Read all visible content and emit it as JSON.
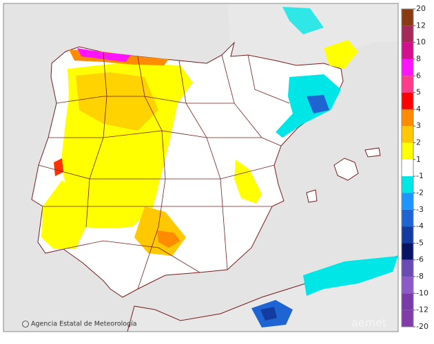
{
  "credit": "Agencia Estatal de Meteorología",
  "watermark": "aemet",
  "legend": {
    "ticks": [
      20,
      12,
      10,
      8,
      6,
      5,
      4,
      3,
      2,
      1,
      -1,
      -2,
      -3,
      -4,
      -5,
      -6,
      -8,
      -10,
      -12,
      -20
    ],
    "colors": [
      "#8a3b12",
      "#a52a5a",
      "#d0108c",
      "#ff14ff",
      "#ff3c8c",
      "#ff0000",
      "#ff8c00",
      "#ffc800",
      "#ffff00",
      "#ffffff",
      "#00e6e6",
      "#1e96ff",
      "#1e64d2",
      "#143ca0",
      "#0a1464",
      "#6a4ab4",
      "#8c5ac8",
      "#7a3aaa",
      "#823caa"
    ]
  }
}
